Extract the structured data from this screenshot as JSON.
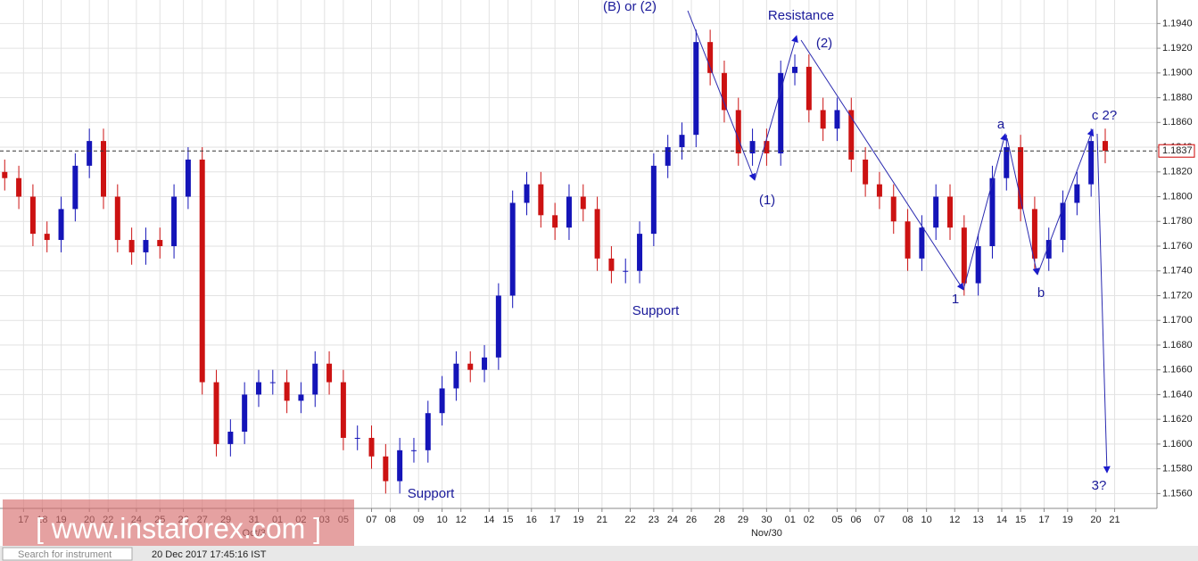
{
  "chart_data": {
    "type": "candlestick",
    "up_color": "#1414b8",
    "down_color": "#cc1212",
    "grid": true,
    "xlim": [
      -1,
      245
    ],
    "ylim": [
      1.1548,
      1.1959
    ],
    "yticks": [
      {
        "value": 1.156,
        "label": "1.1560"
      },
      {
        "value": 1.158,
        "label": "1.1580"
      },
      {
        "value": 1.16,
        "label": "1.1600"
      },
      {
        "value": 1.162,
        "label": "1.1620"
      },
      {
        "value": 1.164,
        "label": "1.1640"
      },
      {
        "value": 1.166,
        "label": "1.1660"
      },
      {
        "value": 1.168,
        "label": "1.1680"
      },
      {
        "value": 1.17,
        "label": "1.1700"
      },
      {
        "value": 1.172,
        "label": "1.1720"
      },
      {
        "value": 1.174,
        "label": "1.1740"
      },
      {
        "value": 1.176,
        "label": "1.1760"
      },
      {
        "value": 1.178,
        "label": "1.1780"
      },
      {
        "value": 1.18,
        "label": "1.1800"
      },
      {
        "value": 1.182,
        "label": "1.1820"
      },
      {
        "value": 1.184,
        "label": "1.1840"
      },
      {
        "value": 1.186,
        "label": "1.1860"
      },
      {
        "value": 1.188,
        "label": "1.1880"
      },
      {
        "value": 1.19,
        "label": "1.1900"
      },
      {
        "value": 1.192,
        "label": "1.1920"
      },
      {
        "value": 1.194,
        "label": "1.1940"
      }
    ],
    "xticks": [
      {
        "value": 4,
        "label": "17"
      },
      {
        "value": 8,
        "label": "18"
      },
      {
        "value": 12,
        "label": "19"
      },
      {
        "value": 18,
        "label": "20"
      },
      {
        "value": 22,
        "label": "22"
      },
      {
        "value": 28,
        "label": "24"
      },
      {
        "value": 33,
        "label": "25"
      },
      {
        "value": 38,
        "label": "26"
      },
      {
        "value": 42,
        "label": "27"
      },
      {
        "value": 47,
        "label": "29"
      },
      {
        "value": 53,
        "label": "31"
      },
      {
        "value": 58,
        "label": "01"
      },
      {
        "value": 63,
        "label": "02"
      },
      {
        "value": 68,
        "label": "03"
      },
      {
        "value": 72,
        "label": "05"
      },
      {
        "value": 78,
        "label": "07"
      },
      {
        "value": 82,
        "label": "08"
      },
      {
        "value": 88,
        "label": "09"
      },
      {
        "value": 93,
        "label": "10"
      },
      {
        "value": 97,
        "label": "12"
      },
      {
        "value": 103,
        "label": "14"
      },
      {
        "value": 107,
        "label": "15"
      },
      {
        "value": 112,
        "label": "16"
      },
      {
        "value": 117,
        "label": "17"
      },
      {
        "value": 122,
        "label": "19"
      },
      {
        "value": 127,
        "label": "21"
      },
      {
        "value": 133,
        "label": "22"
      },
      {
        "value": 138,
        "label": "23"
      },
      {
        "value": 142,
        "label": "24"
      },
      {
        "value": 146,
        "label": "26"
      },
      {
        "value": 152,
        "label": "28"
      },
      {
        "value": 157,
        "label": "29"
      },
      {
        "value": 162,
        "label": "30"
      },
      {
        "value": 167,
        "label": "01"
      },
      {
        "value": 171,
        "label": "02"
      },
      {
        "value": 177,
        "label": "05"
      },
      {
        "value": 181,
        "label": "06"
      },
      {
        "value": 186,
        "label": "07"
      },
      {
        "value": 192,
        "label": "08"
      },
      {
        "value": 196,
        "label": "10"
      },
      {
        "value": 202,
        "label": "12"
      },
      {
        "value": 207,
        "label": "13"
      },
      {
        "value": 212,
        "label": "14"
      },
      {
        "value": 216,
        "label": "15"
      },
      {
        "value": 221,
        "label": "17"
      },
      {
        "value": 226,
        "label": "19"
      },
      {
        "value": 232,
        "label": "20"
      },
      {
        "value": 236,
        "label": "21"
      }
    ],
    "x_sublabels": [
      {
        "value": 53,
        "label": "Oct/3"
      },
      {
        "value": 162,
        "label": "Nov/30"
      }
    ],
    "x": [
      0,
      3,
      6,
      9,
      12,
      15,
      18,
      21,
      24,
      27,
      30,
      33,
      36,
      39,
      42,
      45,
      48,
      51,
      54,
      57,
      60,
      63,
      66,
      69,
      72,
      75,
      78,
      81,
      84,
      87,
      90,
      93,
      96,
      99,
      102,
      105,
      108,
      111,
      114,
      117,
      120,
      123,
      126,
      129,
      132,
      135,
      138,
      141,
      144,
      147,
      150,
      153,
      156,
      159,
      162,
      165,
      168,
      171,
      174,
      177,
      180,
      183,
      186,
      189,
      192,
      195,
      198,
      201,
      204,
      207,
      210,
      213,
      216,
      219,
      222,
      225,
      228,
      231,
      234
    ],
    "open": [
      1.182,
      1.1815,
      1.18,
      1.177,
      1.1765,
      1.179,
      1.1825,
      1.1845,
      1.18,
      1.1765,
      1.1755,
      1.1765,
      1.176,
      1.18,
      1.183,
      1.165,
      1.16,
      1.161,
      1.164,
      1.165,
      1.165,
      1.1635,
      1.164,
      1.1665,
      1.165,
      1.1605,
      1.1605,
      1.159,
      1.157,
      1.1595,
      1.1595,
      1.1625,
      1.1645,
      1.1665,
      1.166,
      1.167,
      1.172,
      1.1795,
      1.181,
      1.1785,
      1.1775,
      1.18,
      1.179,
      1.175,
      1.174,
      1.174,
      1.177,
      1.1825,
      1.184,
      1.185,
      1.1925,
      1.19,
      1.187,
      1.1835,
      1.1845,
      1.1835,
      1.19,
      1.1905,
      1.187,
      1.1855,
      1.187,
      1.183,
      1.181,
      1.18,
      1.178,
      1.175,
      1.1775,
      1.18,
      1.1775,
      1.173,
      1.176,
      1.1815,
      1.184,
      1.179,
      1.175,
      1.1765,
      1.1795,
      1.181,
      1.1845
    ],
    "high": [
      1.183,
      1.1825,
      1.181,
      1.178,
      1.18,
      1.1835,
      1.1855,
      1.1855,
      1.181,
      1.1775,
      1.1775,
      1.1775,
      1.181,
      1.184,
      1.184,
      1.166,
      1.162,
      1.165,
      1.166,
      1.166,
      1.166,
      1.165,
      1.1675,
      1.1675,
      1.166,
      1.1615,
      1.1615,
      1.16,
      1.1605,
      1.1605,
      1.1635,
      1.1655,
      1.1675,
      1.1675,
      1.168,
      1.173,
      1.1805,
      1.182,
      1.182,
      1.1795,
      1.181,
      1.181,
      1.18,
      1.176,
      1.175,
      1.178,
      1.1835,
      1.185,
      1.186,
      1.1935,
      1.1935,
      1.191,
      1.188,
      1.1855,
      1.1855,
      1.191,
      1.1915,
      1.1915,
      1.188,
      1.188,
      1.188,
      1.184,
      1.182,
      1.181,
      1.179,
      1.1785,
      1.181,
      1.181,
      1.1785,
      1.177,
      1.1825,
      1.185,
      1.185,
      1.18,
      1.1775,
      1.1805,
      1.182,
      1.1855,
      1.1855
    ],
    "low": [
      1.1805,
      1.179,
      1.176,
      1.1755,
      1.1755,
      1.178,
      1.1815,
      1.179,
      1.1755,
      1.1745,
      1.1745,
      1.175,
      1.175,
      1.179,
      1.164,
      1.159,
      1.159,
      1.16,
      1.163,
      1.164,
      1.1625,
      1.1625,
      1.163,
      1.164,
      1.1595,
      1.1595,
      1.158,
      1.156,
      1.156,
      1.1585,
      1.1585,
      1.1615,
      1.1635,
      1.165,
      1.165,
      1.166,
      1.171,
      1.1785,
      1.1775,
      1.1765,
      1.1765,
      1.178,
      1.174,
      1.173,
      1.173,
      1.173,
      1.176,
      1.1815,
      1.183,
      1.184,
      1.189,
      1.186,
      1.1825,
      1.1825,
      1.1825,
      1.1825,
      1.189,
      1.186,
      1.1845,
      1.1845,
      1.182,
      1.18,
      1.179,
      1.177,
      1.174,
      1.174,
      1.1765,
      1.1765,
      1.172,
      1.172,
      1.175,
      1.1805,
      1.178,
      1.174,
      1.174,
      1.1755,
      1.1785,
      1.18,
      1.1827
    ],
    "close": [
      1.1815,
      1.18,
      1.177,
      1.1765,
      1.179,
      1.1825,
      1.1845,
      1.18,
      1.1765,
      1.1755,
      1.1765,
      1.176,
      1.18,
      1.183,
      1.165,
      1.16,
      1.161,
      1.164,
      1.165,
      1.165,
      1.1635,
      1.164,
      1.1665,
      1.165,
      1.1605,
      1.1605,
      1.159,
      1.157,
      1.1595,
      1.1595,
      1.1625,
      1.1645,
      1.1665,
      1.166,
      1.167,
      1.172,
      1.1795,
      1.181,
      1.1785,
      1.1775,
      1.18,
      1.179,
      1.175,
      1.174,
      1.174,
      1.177,
      1.1825,
      1.184,
      1.185,
      1.1925,
      1.19,
      1.187,
      1.1835,
      1.1845,
      1.1835,
      1.19,
      1.1905,
      1.187,
      1.1855,
      1.187,
      1.183,
      1.181,
      1.18,
      1.178,
      1.175,
      1.1775,
      1.18,
      1.1775,
      1.173,
      1.176,
      1.1815,
      1.184,
      1.179,
      1.175,
      1.1765,
      1.1795,
      1.181,
      1.1845,
      1.1837
    ],
    "current_price": 1.1837,
    "annotations": [
      "(B) or (2)",
      "Resistance",
      "(2)",
      "(1)",
      "Support",
      "Support",
      "a",
      "c 2?",
      "1",
      "b",
      "3?"
    ]
  },
  "watermark": "[ www.instaforex.com ]",
  "status_bar": {
    "search": "Search for instrument",
    "timestamp": "20 Dec 2017 17:45:16 IST"
  }
}
